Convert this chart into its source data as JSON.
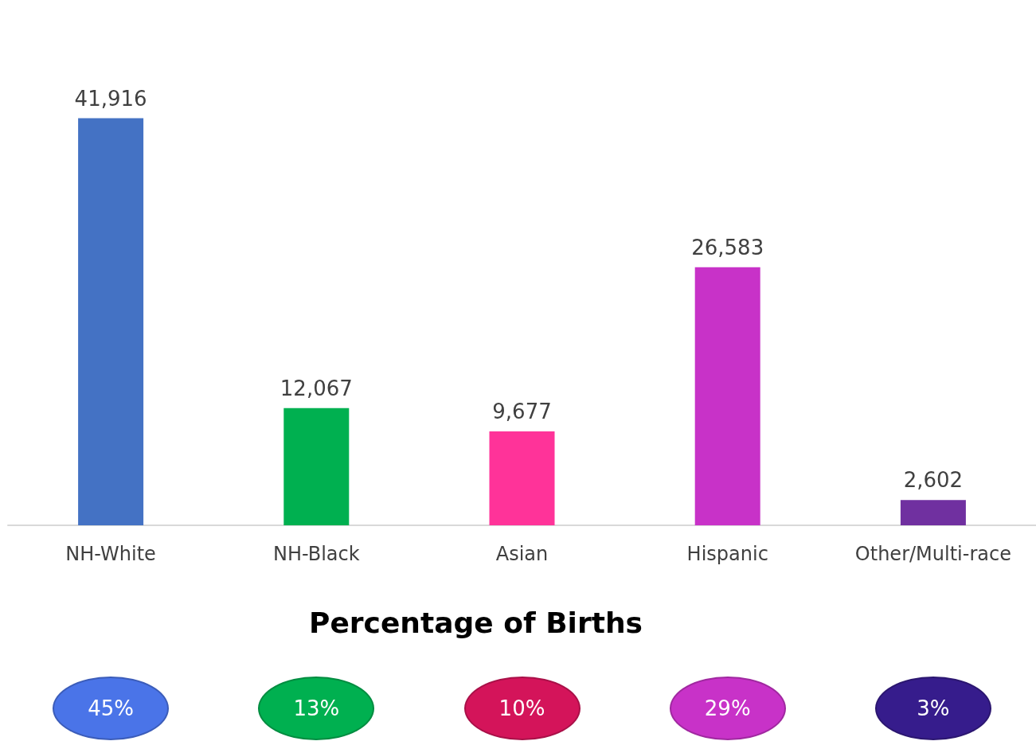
{
  "chart_data": [
    {
      "type": "bar",
      "categories": [
        "NH-White",
        "NH-Black",
        "Asian",
        "Hispanic",
        "Other/Multi-race"
      ],
      "values": [
        41916,
        12067,
        9677,
        26583,
        2602
      ],
      "colors": [
        "#4472c4",
        "#00b050",
        "#ff3399",
        "#c832c8",
        "#7030a0"
      ],
      "value_labels": [
        "41,916",
        "12,067",
        "9,677",
        "26,583",
        "2,602"
      ]
    },
    {
      "type": "other",
      "title": "Percentage of Births",
      "annotations": [
        "45%",
        "13%",
        "10%",
        "29%",
        "3%"
      ],
      "colors": [
        "#4a74e8",
        "#00b050",
        "#d4145a",
        "#c832c8",
        "#361c8c"
      ]
    }
  ]
}
